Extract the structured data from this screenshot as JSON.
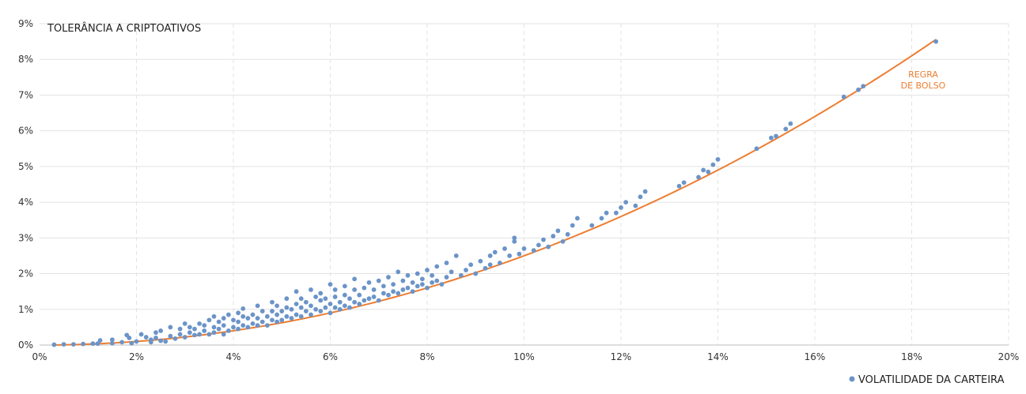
{
  "chart_data": {
    "type": "scatter",
    "ylabel": "TOLERÂNCIA A CRIPTOATIVOS",
    "legend": {
      "marker_label": "VOLATILIDADE DA CARTEIRA",
      "position": "bottom-right"
    },
    "annotation": {
      "lines": [
        "REGRA",
        "DE BOLSO"
      ],
      "color": "#ED7D31"
    },
    "xlim": [
      0,
      20
    ],
    "ylim": [
      0,
      9
    ],
    "x_ticks": [
      "0%",
      "2%",
      "4%",
      "6%",
      "8%",
      "10%",
      "12%",
      "14%",
      "16%",
      "18%",
      "20%"
    ],
    "y_ticks": [
      "0%",
      "1%",
      "2%",
      "3%",
      "4%",
      "5%",
      "6%",
      "7%",
      "8%",
      "9%"
    ],
    "grid": {
      "vertical": "dashed",
      "horizontal": "solid"
    },
    "colors": {
      "points": "#6B94C8",
      "curve": "#ED7D31",
      "grid": "#e3e3e3"
    },
    "curve": {
      "name": "REGRA DE BOLSO",
      "formula": "y = 0.25 * x^2 / 10",
      "x_range": [
        0.3,
        18.5
      ]
    },
    "series": [
      {
        "name": "VOLATILIDADE DA CARTEIRA",
        "points": [
          [
            0.3,
            0.01
          ],
          [
            0.5,
            0.02
          ],
          [
            0.7,
            0.02
          ],
          [
            0.9,
            0.03
          ],
          [
            1.1,
            0.04
          ],
          [
            1.2,
            0.04
          ],
          [
            1.25,
            0.13
          ],
          [
            1.5,
            0.05
          ],
          [
            1.5,
            0.15
          ],
          [
            1.7,
            0.08
          ],
          [
            1.8,
            0.28
          ],
          [
            1.85,
            0.2
          ],
          [
            1.9,
            0.05
          ],
          [
            2.0,
            0.1
          ],
          [
            2.1,
            0.3
          ],
          [
            2.2,
            0.22
          ],
          [
            2.3,
            0.08
          ],
          [
            2.3,
            0.15
          ],
          [
            2.4,
            0.2
          ],
          [
            2.4,
            0.35
          ],
          [
            2.5,
            0.12
          ],
          [
            2.5,
            0.4
          ],
          [
            2.6,
            0.1
          ],
          [
            2.7,
            0.25
          ],
          [
            2.7,
            0.5
          ],
          [
            2.8,
            0.18
          ],
          [
            2.9,
            0.3
          ],
          [
            2.9,
            0.45
          ],
          [
            3.0,
            0.22
          ],
          [
            3.0,
            0.6
          ],
          [
            3.1,
            0.35
          ],
          [
            3.1,
            0.5
          ],
          [
            3.2,
            0.28
          ],
          [
            3.2,
            0.45
          ],
          [
            3.3,
            0.3
          ],
          [
            3.3,
            0.6
          ],
          [
            3.4,
            0.4
          ],
          [
            3.4,
            0.55
          ],
          [
            3.5,
            0.3
          ],
          [
            3.5,
            0.7
          ],
          [
            3.6,
            0.35
          ],
          [
            3.6,
            0.5
          ],
          [
            3.6,
            0.8
          ],
          [
            3.7,
            0.45
          ],
          [
            3.7,
            0.65
          ],
          [
            3.8,
            0.3
          ],
          [
            3.8,
            0.55
          ],
          [
            3.8,
            0.75
          ],
          [
            3.9,
            0.4
          ],
          [
            3.9,
            0.85
          ],
          [
            4.0,
            0.5
          ],
          [
            4.0,
            0.7
          ],
          [
            4.1,
            0.45
          ],
          [
            4.1,
            0.65
          ],
          [
            4.1,
            0.9
          ],
          [
            4.2,
            0.55
          ],
          [
            4.2,
            0.8
          ],
          [
            4.2,
            1.02
          ],
          [
            4.3,
            0.5
          ],
          [
            4.3,
            0.75
          ],
          [
            4.4,
            0.6
          ],
          [
            4.4,
            0.85
          ],
          [
            4.5,
            0.55
          ],
          [
            4.5,
            0.75
          ],
          [
            4.5,
            1.1
          ],
          [
            4.6,
            0.65
          ],
          [
            4.6,
            0.95
          ],
          [
            4.7,
            0.55
          ],
          [
            4.7,
            0.8
          ],
          [
            4.8,
            0.7
          ],
          [
            4.8,
            0.95
          ],
          [
            4.8,
            1.2
          ],
          [
            4.9,
            0.65
          ],
          [
            4.9,
            0.85
          ],
          [
            4.9,
            1.1
          ],
          [
            5.0,
            0.7
          ],
          [
            5.0,
            0.95
          ],
          [
            5.1,
            0.8
          ],
          [
            5.1,
            1.05
          ],
          [
            5.1,
            1.3
          ],
          [
            5.2,
            0.75
          ],
          [
            5.2,
            1.0
          ],
          [
            5.3,
            0.85
          ],
          [
            5.3,
            1.15
          ],
          [
            5.3,
            1.5
          ],
          [
            5.4,
            0.8
          ],
          [
            5.4,
            1.05
          ],
          [
            5.4,
            1.3
          ],
          [
            5.5,
            0.95
          ],
          [
            5.5,
            1.2
          ],
          [
            5.6,
            0.85
          ],
          [
            5.6,
            1.1
          ],
          [
            5.6,
            1.55
          ],
          [
            5.7,
            1.0
          ],
          [
            5.7,
            1.35
          ],
          [
            5.8,
            0.95
          ],
          [
            5.8,
            1.25
          ],
          [
            5.8,
            1.45
          ],
          [
            5.9,
            1.05
          ],
          [
            5.9,
            1.3
          ],
          [
            6.0,
            0.9
          ],
          [
            6.0,
            1.15
          ],
          [
            6.0,
            1.7
          ],
          [
            6.1,
            1.05
          ],
          [
            6.1,
            1.35
          ],
          [
            6.1,
            1.55
          ],
          [
            6.2,
            1.0
          ],
          [
            6.2,
            1.2
          ],
          [
            6.3,
            1.1
          ],
          [
            6.3,
            1.4
          ],
          [
            6.3,
            1.65
          ],
          [
            6.4,
            1.05
          ],
          [
            6.4,
            1.3
          ],
          [
            6.5,
            1.2
          ],
          [
            6.5,
            1.55
          ],
          [
            6.5,
            1.85
          ],
          [
            6.6,
            1.15
          ],
          [
            6.6,
            1.4
          ],
          [
            6.7,
            1.25
          ],
          [
            6.7,
            1.6
          ],
          [
            6.8,
            1.3
          ],
          [
            6.8,
            1.75
          ],
          [
            6.9,
            1.35
          ],
          [
            6.9,
            1.55
          ],
          [
            7.0,
            1.25
          ],
          [
            7.0,
            1.8
          ],
          [
            7.1,
            1.45
          ],
          [
            7.1,
            1.65
          ],
          [
            7.2,
            1.4
          ],
          [
            7.2,
            1.9
          ],
          [
            7.3,
            1.5
          ],
          [
            7.3,
            1.7
          ],
          [
            7.4,
            1.45
          ],
          [
            7.4,
            2.05
          ],
          [
            7.5,
            1.55
          ],
          [
            7.5,
            1.8
          ],
          [
            7.6,
            1.6
          ],
          [
            7.6,
            1.95
          ],
          [
            7.7,
            1.5
          ],
          [
            7.7,
            1.75
          ],
          [
            7.8,
            1.65
          ],
          [
            7.8,
            2.0
          ],
          [
            7.9,
            1.7
          ],
          [
            7.9,
            1.85
          ],
          [
            8.0,
            1.6
          ],
          [
            8.0,
            2.1
          ],
          [
            8.1,
            1.75
          ],
          [
            8.1,
            1.95
          ],
          [
            8.2,
            1.8
          ],
          [
            8.2,
            2.2
          ],
          [
            8.3,
            1.7
          ],
          [
            8.4,
            1.9
          ],
          [
            8.4,
            2.3
          ],
          [
            8.5,
            2.05
          ],
          [
            8.6,
            2.5
          ],
          [
            8.7,
            1.95
          ],
          [
            8.8,
            2.1
          ],
          [
            8.9,
            2.25
          ],
          [
            9.0,
            2.0
          ],
          [
            9.1,
            2.35
          ],
          [
            9.2,
            2.15
          ],
          [
            9.3,
            2.5
          ],
          [
            9.3,
            2.25
          ],
          [
            9.4,
            2.6
          ],
          [
            9.5,
            2.3
          ],
          [
            9.6,
            2.7
          ],
          [
            9.7,
            2.5
          ],
          [
            9.8,
            2.9
          ],
          [
            9.8,
            3.0
          ],
          [
            9.9,
            2.55
          ],
          [
            10.0,
            2.7
          ],
          [
            10.2,
            2.65
          ],
          [
            10.3,
            2.8
          ],
          [
            10.4,
            2.95
          ],
          [
            10.5,
            2.75
          ],
          [
            10.6,
            3.05
          ],
          [
            10.7,
            3.2
          ],
          [
            10.8,
            2.9
          ],
          [
            10.9,
            3.1
          ],
          [
            11.0,
            3.35
          ],
          [
            11.1,
            3.55
          ],
          [
            11.4,
            3.35
          ],
          [
            11.6,
            3.55
          ],
          [
            11.7,
            3.7
          ],
          [
            11.9,
            3.7
          ],
          [
            12.0,
            3.85
          ],
          [
            12.1,
            4.0
          ],
          [
            12.3,
            3.9
          ],
          [
            12.4,
            4.15
          ],
          [
            12.5,
            4.3
          ],
          [
            13.2,
            4.45
          ],
          [
            13.3,
            4.55
          ],
          [
            13.6,
            4.7
          ],
          [
            13.7,
            4.9
          ],
          [
            13.8,
            4.85
          ],
          [
            13.9,
            5.05
          ],
          [
            14.0,
            5.2
          ],
          [
            14.8,
            5.5
          ],
          [
            15.1,
            5.8
          ],
          [
            15.2,
            5.85
          ],
          [
            15.4,
            6.05
          ],
          [
            15.5,
            6.2
          ],
          [
            16.6,
            6.95
          ],
          [
            16.9,
            7.15
          ],
          [
            17.0,
            7.25
          ],
          [
            18.5,
            8.5
          ]
        ]
      }
    ]
  }
}
